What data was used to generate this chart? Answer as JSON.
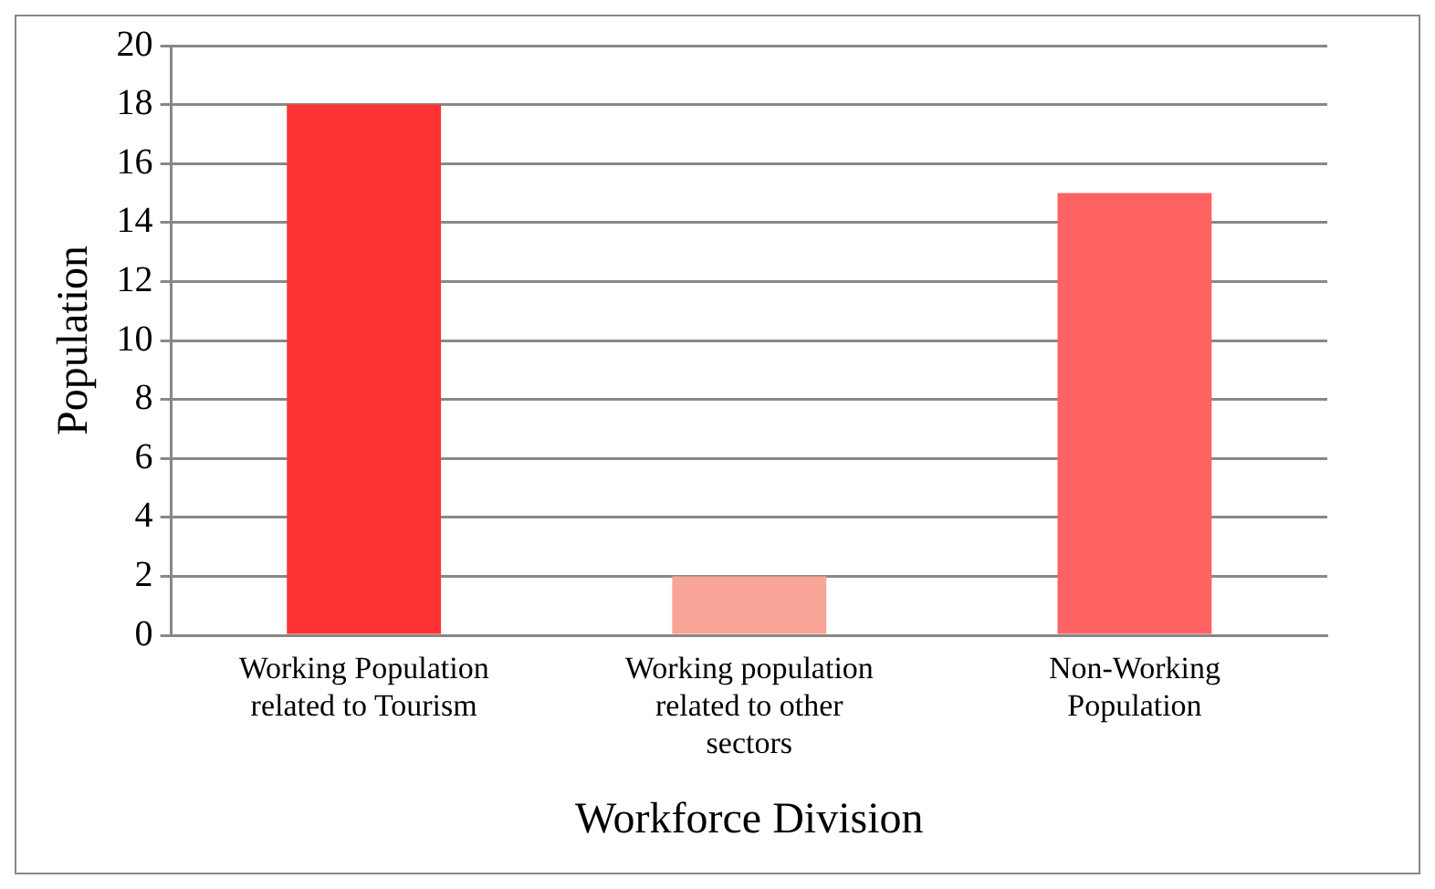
{
  "chart_data": {
    "type": "bar",
    "xlabel": "Workforce Division",
    "ylabel": "Population",
    "categories": [
      "Working Population related to Tourism",
      "Working population related to other sectors",
      "Non-Working Population"
    ],
    "values": [
      18,
      2,
      15
    ],
    "colors": [
      "#ff3333",
      "#f8a496",
      "#ff6262"
    ],
    "ylim": [
      0,
      20
    ],
    "yticks": [
      0,
      2,
      4,
      6,
      8,
      10,
      12,
      14,
      16,
      18,
      20
    ],
    "grid": "y",
    "legend": false
  }
}
